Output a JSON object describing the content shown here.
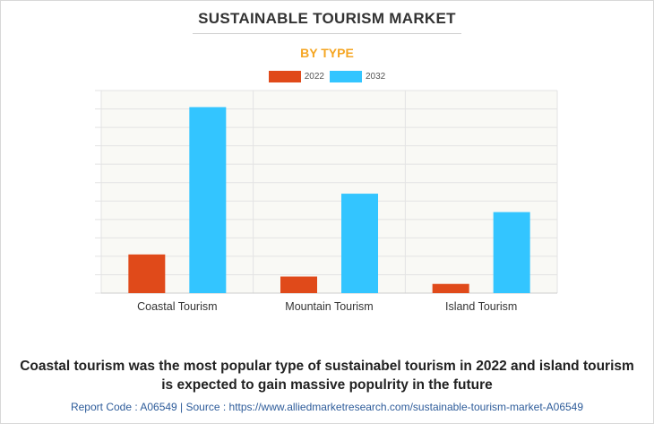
{
  "header": {
    "title": "SUSTAINABLE TOURISM MARKET",
    "subtitle": "BY TYPE"
  },
  "colors": {
    "series_2022": "#e04a1a",
    "series_2032": "#33c5ff",
    "subtitle": "#f5a623",
    "link": "#2e5c9a"
  },
  "chart_data": {
    "type": "bar",
    "title": "SUSTAINABLE TOURISM MARKET",
    "subtitle": "BY TYPE",
    "categories": [
      "Coastal Tourism",
      "Mountain Tourism",
      "Island Tourism"
    ],
    "series": [
      {
        "name": "2022",
        "values": [
          2.1,
          0.9,
          0.5
        ]
      },
      {
        "name": "2032",
        "values": [
          10.1,
          5.4,
          4.4
        ]
      }
    ],
    "xlabel": "",
    "ylabel": "",
    "ylim": [
      0,
      11
    ],
    "grid": true,
    "legend": "top-center"
  },
  "footer": {
    "line1": "Coastal tourism was the most popular type of sustainabel tourism in 2022 and island tourism",
    "line2": "is expected to gain massive populrity in the future",
    "report": "Report Code : A06549  |  Source : https://www.alliedmarketresearch.com/sustainable-tourism-market-A06549"
  }
}
